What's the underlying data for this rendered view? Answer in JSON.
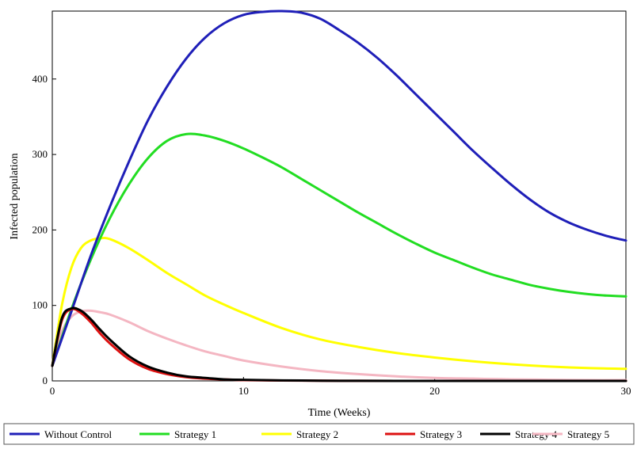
{
  "chart_data": {
    "type": "line",
    "title": "",
    "xlabel": "Time (Weeks)",
    "ylabel": "Infected population",
    "xlim": [
      0,
      30
    ],
    "ylim": [
      0,
      490
    ],
    "xticks": [
      0,
      10,
      20,
      30
    ],
    "yticks": [
      0,
      100,
      200,
      300,
      400
    ],
    "legend_position": "bottom",
    "series": [
      {
        "name": "Without Control",
        "color": "#1f1fb8",
        "x": [
          0,
          1,
          2,
          3,
          4,
          5,
          6,
          7,
          8,
          9,
          10,
          11,
          12,
          13,
          14,
          15,
          16,
          17,
          18,
          19,
          20,
          21,
          22,
          23,
          24,
          25,
          26,
          27,
          28,
          29,
          30
        ],
        "values": [
          20,
          92,
          165,
          230,
          290,
          345,
          390,
          427,
          455,
          474,
          485,
          489,
          490,
          488,
          480,
          465,
          448,
          428,
          405,
          380,
          355,
          330,
          305,
          282,
          260,
          240,
          223,
          210,
          200,
          192,
          186
        ]
      },
      {
        "name": "Strategy 1",
        "color": "#22dd22",
        "x": [
          0,
          1,
          2,
          3,
          4,
          5,
          6,
          7,
          8,
          9,
          10,
          11,
          12,
          13,
          14,
          15,
          16,
          17,
          18,
          19,
          20,
          21,
          22,
          23,
          24,
          25,
          26,
          27,
          28,
          29,
          30
        ],
        "values": [
          20,
          95,
          160,
          215,
          260,
          295,
          318,
          327,
          325,
          318,
          308,
          296,
          283,
          268,
          253,
          238,
          223,
          209,
          195,
          182,
          170,
          160,
          150,
          141,
          134,
          127,
          122,
          118,
          115,
          113,
          112
        ]
      },
      {
        "name": "Strategy 2",
        "color": "#ffff00",
        "x": [
          0,
          0.5,
          1,
          1.5,
          2,
          2.5,
          3,
          4,
          5,
          6,
          7,
          8,
          9,
          10,
          12,
          14,
          16,
          18,
          20,
          22,
          24,
          26,
          28,
          30
        ],
        "values": [
          20,
          100,
          150,
          176,
          186,
          189,
          188,
          176,
          160,
          143,
          128,
          113,
          101,
          90,
          70,
          55,
          45,
          37,
          31,
          26,
          22,
          19,
          17,
          16
        ]
      },
      {
        "name": "Strategy 3",
        "color": "#dd1111",
        "x": [
          0,
          0.5,
          1,
          1.5,
          2,
          2.5,
          3,
          4,
          5,
          6,
          7,
          8,
          9,
          10,
          12,
          14,
          16,
          18,
          20,
          25,
          30
        ],
        "values": [
          20,
          80,
          95,
          90,
          78,
          63,
          50,
          29,
          16,
          9,
          5,
          3,
          2,
          1,
          0.5,
          0.2,
          0.1,
          0,
          0,
          0,
          0
        ]
      },
      {
        "name": "Strategy 4",
        "color": "#000000",
        "x": [
          0,
          0.5,
          1,
          1.5,
          2,
          2.5,
          3,
          4,
          5,
          6,
          7,
          8,
          9,
          10,
          12,
          14,
          16,
          18,
          20,
          25,
          30
        ],
        "values": [
          20,
          83,
          96,
          93,
          82,
          68,
          55,
          33,
          19,
          11,
          6,
          4,
          2,
          1.5,
          0.7,
          0.3,
          0.1,
          0,
          0,
          0,
          0
        ]
      },
      {
        "name": "Strategy 5",
        "color": "#f4b6c2",
        "x": [
          0,
          0.5,
          1,
          1.5,
          2,
          2.5,
          3,
          4,
          5,
          6,
          7,
          8,
          9,
          10,
          12,
          14,
          16,
          18,
          20,
          22,
          24,
          26,
          28,
          30
        ],
        "values": [
          20,
          65,
          85,
          92,
          93,
          91,
          88,
          78,
          66,
          56,
          47,
          39,
          33,
          27,
          19,
          13,
          9,
          6,
          4,
          3,
          2,
          1.5,
          1,
          1
        ]
      }
    ]
  }
}
